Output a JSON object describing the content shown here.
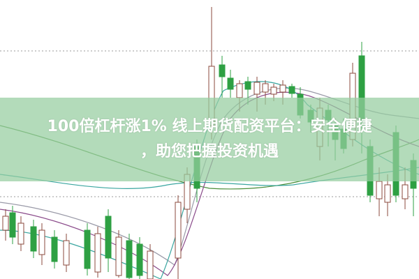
{
  "headline": {
    "line1": "100倍杠杆涨1% 线上期货配资平台：安全便捷",
    "line2": "，助您把握投资机遇"
  },
  "colors": {
    "up_candle": "#8b4a3c",
    "down_candle": "#2ea043",
    "banner": "#96cda0",
    "ma_teal": "#3aa6a0",
    "ma_purple": "#8a4a8a",
    "ma_gray": "#9a9aa8",
    "ma_green": "#4b8f3a"
  }
}
